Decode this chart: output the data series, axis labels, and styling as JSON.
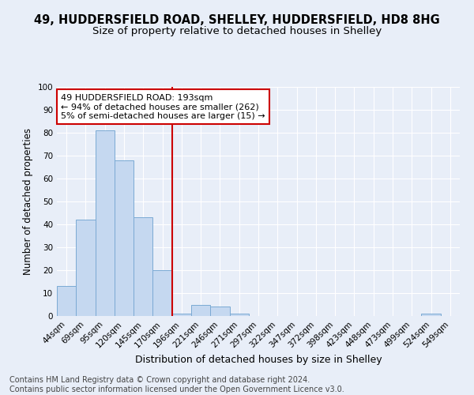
{
  "title1": "49, HUDDERSFIELD ROAD, SHELLEY, HUDDERSFIELD, HD8 8HG",
  "title2": "Size of property relative to detached houses in Shelley",
  "xlabel": "Distribution of detached houses by size in Shelley",
  "ylabel": "Number of detached properties",
  "footnote": "Contains HM Land Registry data © Crown copyright and database right 2024.\nContains public sector information licensed under the Open Government Licence v3.0.",
  "categories": [
    "44sqm",
    "69sqm",
    "95sqm",
    "120sqm",
    "145sqm",
    "170sqm",
    "196sqm",
    "221sqm",
    "246sqm",
    "271sqm",
    "297sqm",
    "322sqm",
    "347sqm",
    "372sqm",
    "398sqm",
    "423sqm",
    "448sqm",
    "473sqm",
    "499sqm",
    "524sqm",
    "549sqm"
  ],
  "values": [
    13,
    42,
    81,
    68,
    43,
    20,
    1,
    5,
    4,
    1,
    0,
    0,
    0,
    0,
    0,
    0,
    0,
    0,
    0,
    1,
    0
  ],
  "bar_color": "#c5d8f0",
  "bar_edge_color": "#7baad4",
  "vline_x_idx": 6,
  "vline_color": "#cc0000",
  "annotation_text": "49 HUDDERSFIELD ROAD: 193sqm\n← 94% of detached houses are smaller (262)\n5% of semi-detached houses are larger (15) →",
  "annotation_box_edgecolor": "#cc0000",
  "annotation_box_facecolor": "#ffffff",
  "bg_color": "#e8eef8",
  "grid_color": "#ffffff",
  "ylim": [
    0,
    100
  ],
  "title1_fontsize": 10.5,
  "title2_fontsize": 9.5,
  "xlabel_fontsize": 9,
  "ylabel_fontsize": 8.5,
  "tick_fontsize": 7.5,
  "annot_fontsize": 8,
  "footnote_fontsize": 7
}
